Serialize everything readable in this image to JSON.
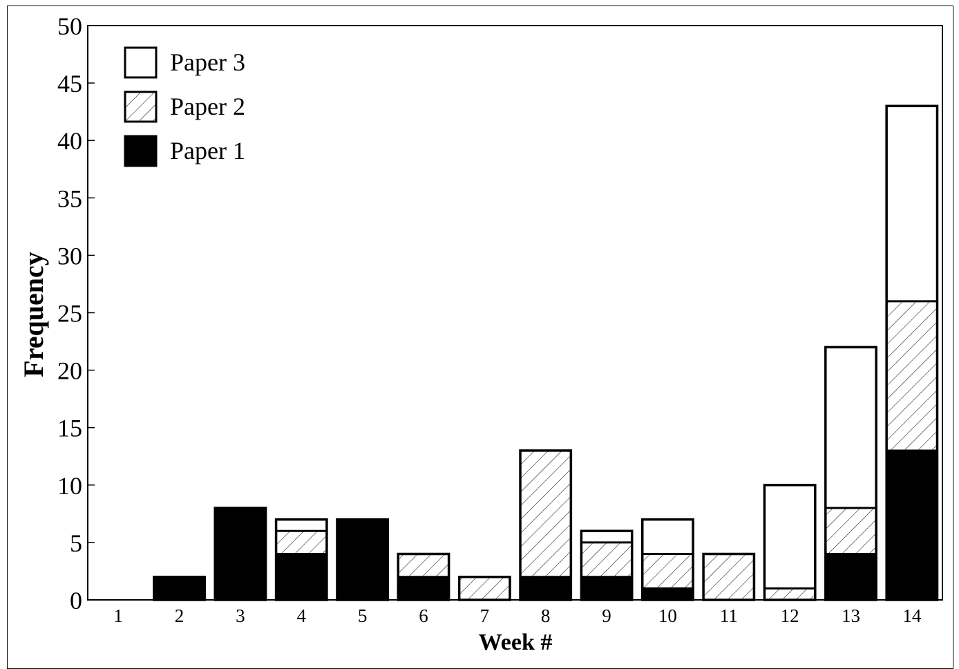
{
  "chart_data": {
    "type": "bar",
    "stacked": true,
    "title": "",
    "xlabel": "Week #",
    "ylabel": "Frequency",
    "ylim": [
      0,
      50
    ],
    "yticks": [
      0,
      5,
      10,
      15,
      20,
      25,
      30,
      35,
      40,
      45,
      50
    ],
    "categories": [
      "1",
      "2",
      "3",
      "4",
      "5",
      "6",
      "7",
      "8",
      "9",
      "10",
      "11",
      "12",
      "13",
      "14"
    ],
    "series": [
      {
        "name": "Paper 1",
        "fill": "solid",
        "color": "#000000",
        "values": [
          0,
          2,
          8,
          4,
          7,
          2,
          0,
          2,
          2,
          1,
          0,
          0,
          4,
          13
        ]
      },
      {
        "name": "Paper 2",
        "fill": "hatched",
        "color": "#000000",
        "values": [
          0,
          0,
          0,
          2,
          0,
          2,
          2,
          11,
          3,
          3,
          4,
          1,
          4,
          13
        ]
      },
      {
        "name": "Paper 3",
        "fill": "empty",
        "color": "#ffffff",
        "values": [
          0,
          0,
          0,
          1,
          0,
          0,
          0,
          0,
          1,
          3,
          0,
          9,
          14,
          17
        ]
      }
    ],
    "legend": {
      "placement": "top-left",
      "order": [
        "Paper 3",
        "Paper 2",
        "Paper 1"
      ]
    },
    "grid": false
  }
}
